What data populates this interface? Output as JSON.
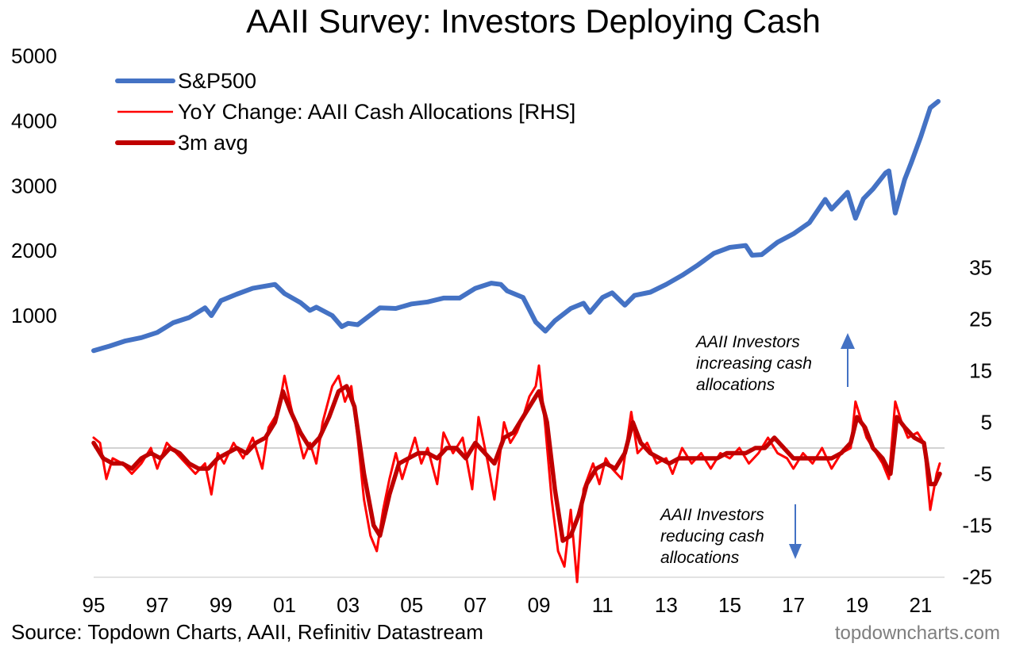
{
  "chart_data": {
    "type": "line",
    "title": "AAII Survey: Investors Deploying Cash",
    "source": "Source: Topdown Charts, AAII, Refinitiv Datastream",
    "watermark": "topdowncharts.com",
    "x_ticks": [
      "95",
      "97",
      "99",
      "01",
      "03",
      "05",
      "07",
      "09",
      "11",
      "13",
      "15",
      "17",
      "19",
      "21"
    ],
    "x_range": [
      1995.0,
      2021.75
    ],
    "left_axis": {
      "ticks": [
        "5000",
        "4000",
        "3000",
        "2000",
        "1000"
      ],
      "range": [
        0,
        5000
      ]
    },
    "right_axis": {
      "ticks": [
        "35",
        "25",
        "15",
        "5",
        "-5",
        "-15",
        "-25"
      ],
      "range": [
        -25,
        35
      ]
    },
    "legend": {
      "sp500": "S&P500",
      "yoy": "YoY Change: AAII Cash Allocations [RHS]",
      "avg": "3m avg"
    },
    "annotations": {
      "up": [
        "AAII Investors",
        "increasing cash",
        "allocations"
      ],
      "down": [
        "AAII Investors",
        "reducing cash",
        "allocations"
      ]
    },
    "colors": {
      "sp500": "#4472c4",
      "yoy": "#ff0000",
      "avg": "#c00000",
      "zero_line": "#a6a6a6",
      "arrow": "#4472c4"
    },
    "series": [
      {
        "name": "S&P500",
        "axis": "left",
        "points": [
          [
            1995.0,
            460
          ],
          [
            1995.5,
            530
          ],
          [
            1996.0,
            610
          ],
          [
            1996.5,
            660
          ],
          [
            1997.0,
            740
          ],
          [
            1997.5,
            890
          ],
          [
            1998.0,
            970
          ],
          [
            1998.5,
            1120
          ],
          [
            1998.7,
            1000
          ],
          [
            1999.0,
            1230
          ],
          [
            1999.5,
            1330
          ],
          [
            2000.0,
            1420
          ],
          [
            2000.7,
            1480
          ],
          [
            2001.0,
            1340
          ],
          [
            2001.5,
            1200
          ],
          [
            2001.8,
            1080
          ],
          [
            2002.0,
            1130
          ],
          [
            2002.5,
            1000
          ],
          [
            2002.8,
            830
          ],
          [
            2003.0,
            880
          ],
          [
            2003.3,
            860
          ],
          [
            2003.7,
            1010
          ],
          [
            2004.0,
            1120
          ],
          [
            2004.5,
            1110
          ],
          [
            2005.0,
            1180
          ],
          [
            2005.5,
            1210
          ],
          [
            2006.0,
            1270
          ],
          [
            2006.5,
            1270
          ],
          [
            2007.0,
            1420
          ],
          [
            2007.5,
            1500
          ],
          [
            2007.8,
            1480
          ],
          [
            2008.0,
            1380
          ],
          [
            2008.5,
            1280
          ],
          [
            2008.9,
            900
          ],
          [
            2009.2,
            760
          ],
          [
            2009.5,
            920
          ],
          [
            2010.0,
            1110
          ],
          [
            2010.4,
            1190
          ],
          [
            2010.6,
            1050
          ],
          [
            2011.0,
            1280
          ],
          [
            2011.3,
            1350
          ],
          [
            2011.7,
            1160
          ],
          [
            2012.0,
            1310
          ],
          [
            2012.5,
            1360
          ],
          [
            2013.0,
            1480
          ],
          [
            2013.5,
            1620
          ],
          [
            2014.0,
            1780
          ],
          [
            2014.5,
            1960
          ],
          [
            2015.0,
            2050
          ],
          [
            2015.5,
            2080
          ],
          [
            2015.7,
            1930
          ],
          [
            2016.0,
            1940
          ],
          [
            2016.5,
            2130
          ],
          [
            2017.0,
            2260
          ],
          [
            2017.5,
            2430
          ],
          [
            2018.0,
            2790
          ],
          [
            2018.2,
            2640
          ],
          [
            2018.7,
            2900
          ],
          [
            2018.95,
            2500
          ],
          [
            2019.2,
            2800
          ],
          [
            2019.5,
            2950
          ],
          [
            2019.9,
            3200
          ],
          [
            2020.0,
            3230
          ],
          [
            2020.2,
            2580
          ],
          [
            2020.5,
            3100
          ],
          [
            2020.7,
            3350
          ],
          [
            2021.0,
            3750
          ],
          [
            2021.3,
            4200
          ],
          [
            2021.55,
            4300
          ]
        ]
      },
      {
        "name": "YoY Change: AAII Cash Allocations [RHS]",
        "axis": "right",
        "points": [
          [
            1995.0,
            2
          ],
          [
            1995.2,
            1
          ],
          [
            1995.4,
            -6
          ],
          [
            1995.6,
            -2
          ],
          [
            1995.9,
            -3
          ],
          [
            1996.2,
            -5
          ],
          [
            1996.5,
            -3
          ],
          [
            1996.8,
            0
          ],
          [
            1997.0,
            -4
          ],
          [
            1997.3,
            1
          ],
          [
            1997.6,
            -1
          ],
          [
            1997.9,
            -3
          ],
          [
            1998.2,
            -5
          ],
          [
            1998.5,
            -3
          ],
          [
            1998.7,
            -9
          ],
          [
            1998.9,
            -1
          ],
          [
            1999.1,
            -3
          ],
          [
            1999.4,
            1
          ],
          [
            1999.7,
            -2
          ],
          [
            2000.0,
            2
          ],
          [
            2000.3,
            -4
          ],
          [
            2000.5,
            4
          ],
          [
            2000.8,
            7
          ],
          [
            2001.0,
            14
          ],
          [
            2001.2,
            8
          ],
          [
            2001.4,
            3
          ],
          [
            2001.6,
            -2
          ],
          [
            2001.8,
            1
          ],
          [
            2002.0,
            -3
          ],
          [
            2002.2,
            5
          ],
          [
            2002.5,
            12
          ],
          [
            2002.7,
            14
          ],
          [
            2002.9,
            9
          ],
          [
            2003.1,
            12
          ],
          [
            2003.3,
            2
          ],
          [
            2003.5,
            -10
          ],
          [
            2003.7,
            -17
          ],
          [
            2003.9,
            -20
          ],
          [
            2004.1,
            -12
          ],
          [
            2004.3,
            -6
          ],
          [
            2004.5,
            -1
          ],
          [
            2004.7,
            -6
          ],
          [
            2004.9,
            -2
          ],
          [
            2005.1,
            2
          ],
          [
            2005.3,
            -3
          ],
          [
            2005.5,
            0
          ],
          [
            2005.8,
            -7
          ],
          [
            2006.0,
            3
          ],
          [
            2006.3,
            -1
          ],
          [
            2006.6,
            2
          ],
          [
            2006.9,
            -8
          ],
          [
            2007.1,
            6
          ],
          [
            2007.4,
            -3
          ],
          [
            2007.6,
            -10
          ],
          [
            2007.9,
            5
          ],
          [
            2008.1,
            1
          ],
          [
            2008.3,
            3
          ],
          [
            2008.5,
            6
          ],
          [
            2008.7,
            10
          ],
          [
            2008.9,
            12
          ],
          [
            2009.0,
            16
          ],
          [
            2009.2,
            4
          ],
          [
            2009.4,
            -10
          ],
          [
            2009.6,
            -20
          ],
          [
            2009.8,
            -23
          ],
          [
            2010.0,
            -12
          ],
          [
            2010.2,
            -26
          ],
          [
            2010.4,
            -8
          ],
          [
            2010.7,
            -3
          ],
          [
            2010.9,
            -7
          ],
          [
            2011.1,
            -2
          ],
          [
            2011.3,
            -4
          ],
          [
            2011.6,
            -6
          ],
          [
            2011.9,
            7
          ],
          [
            2012.1,
            -1
          ],
          [
            2012.4,
            1
          ],
          [
            2012.7,
            -3
          ],
          [
            2013.0,
            -2
          ],
          [
            2013.2,
            -5
          ],
          [
            2013.5,
            0
          ],
          [
            2013.8,
            -3
          ],
          [
            2014.1,
            -1
          ],
          [
            2014.4,
            -4
          ],
          [
            2014.7,
            -1
          ],
          [
            2015.0,
            -2
          ],
          [
            2015.3,
            0
          ],
          [
            2015.6,
            -3
          ],
          [
            2015.9,
            -1
          ],
          [
            2016.2,
            2
          ],
          [
            2016.5,
            -1
          ],
          [
            2016.8,
            -2
          ],
          [
            2017.0,
            -4
          ],
          [
            2017.3,
            -1
          ],
          [
            2017.6,
            -3
          ],
          [
            2017.9,
            0
          ],
          [
            2018.2,
            -4
          ],
          [
            2018.5,
            -1
          ],
          [
            2018.8,
            0
          ],
          [
            2018.95,
            9
          ],
          [
            2019.1,
            6
          ],
          [
            2019.3,
            2
          ],
          [
            2019.6,
            -1
          ],
          [
            2019.8,
            -3
          ],
          [
            2020.0,
            -6
          ],
          [
            2020.2,
            9
          ],
          [
            2020.4,
            5
          ],
          [
            2020.6,
            2
          ],
          [
            2020.9,
            3
          ],
          [
            2021.1,
            1
          ],
          [
            2021.3,
            -12
          ],
          [
            2021.5,
            -5
          ],
          [
            2021.6,
            -3
          ]
        ]
      },
      {
        "name": "3m avg",
        "axis": "right",
        "points": [
          [
            1995.0,
            1
          ],
          [
            1995.3,
            -2
          ],
          [
            1995.6,
            -3
          ],
          [
            1995.9,
            -3
          ],
          [
            1996.2,
            -4
          ],
          [
            1996.5,
            -2
          ],
          [
            1996.8,
            -1
          ],
          [
            1997.1,
            -2
          ],
          [
            1997.4,
            0
          ],
          [
            1997.7,
            -1
          ],
          [
            1998.0,
            -3
          ],
          [
            1998.3,
            -4
          ],
          [
            1998.6,
            -4
          ],
          [
            1998.9,
            -2
          ],
          [
            1999.2,
            -1
          ],
          [
            1999.5,
            0
          ],
          [
            1999.8,
            -1
          ],
          [
            2000.1,
            1
          ],
          [
            2000.4,
            2
          ],
          [
            2000.7,
            5
          ],
          [
            2000.95,
            11
          ],
          [
            2001.2,
            7
          ],
          [
            2001.5,
            3
          ],
          [
            2001.8,
            0
          ],
          [
            2002.1,
            2
          ],
          [
            2002.4,
            6
          ],
          [
            2002.7,
            11
          ],
          [
            2002.95,
            12
          ],
          [
            2003.2,
            8
          ],
          [
            2003.5,
            -5
          ],
          [
            2003.8,
            -15
          ],
          [
            2004.0,
            -17
          ],
          [
            2004.3,
            -9
          ],
          [
            2004.6,
            -3
          ],
          [
            2004.9,
            -2
          ],
          [
            2005.2,
            -1
          ],
          [
            2005.5,
            -1
          ],
          [
            2005.8,
            -2
          ],
          [
            2006.1,
            0
          ],
          [
            2006.4,
            0
          ],
          [
            2006.7,
            -2
          ],
          [
            2007.0,
            1
          ],
          [
            2007.3,
            -1
          ],
          [
            2007.6,
            -3
          ],
          [
            2007.9,
            2
          ],
          [
            2008.2,
            3
          ],
          [
            2008.5,
            6
          ],
          [
            2008.8,
            9
          ],
          [
            2009.0,
            11
          ],
          [
            2009.25,
            5
          ],
          [
            2009.5,
            -8
          ],
          [
            2009.75,
            -18
          ],
          [
            2010.0,
            -17
          ],
          [
            2010.25,
            -13
          ],
          [
            2010.5,
            -7
          ],
          [
            2010.8,
            -4
          ],
          [
            2011.1,
            -3
          ],
          [
            2011.4,
            -4
          ],
          [
            2011.7,
            -1
          ],
          [
            2011.95,
            5
          ],
          [
            2012.2,
            1
          ],
          [
            2012.5,
            -1
          ],
          [
            2012.8,
            -2
          ],
          [
            2013.1,
            -3
          ],
          [
            2013.4,
            -2
          ],
          [
            2013.7,
            -2
          ],
          [
            2014.0,
            -2
          ],
          [
            2014.3,
            -2
          ],
          [
            2014.6,
            -2
          ],
          [
            2014.9,
            -1
          ],
          [
            2015.2,
            -1
          ],
          [
            2015.5,
            -1
          ],
          [
            2015.8,
            0
          ],
          [
            2016.1,
            0
          ],
          [
            2016.4,
            2
          ],
          [
            2016.7,
            0
          ],
          [
            2017.0,
            -2
          ],
          [
            2017.3,
            -2
          ],
          [
            2017.6,
            -2
          ],
          [
            2017.9,
            -2
          ],
          [
            2018.2,
            -2
          ],
          [
            2018.5,
            -1
          ],
          [
            2018.8,
            1
          ],
          [
            2019.0,
            6
          ],
          [
            2019.25,
            4
          ],
          [
            2019.5,
            0
          ],
          [
            2019.8,
            -2
          ],
          [
            2020.05,
            -5
          ],
          [
            2020.25,
            6
          ],
          [
            2020.5,
            4
          ],
          [
            2020.8,
            2
          ],
          [
            2021.1,
            1
          ],
          [
            2021.3,
            -7
          ],
          [
            2021.45,
            -7
          ],
          [
            2021.6,
            -5
          ]
        ]
      }
    ]
  }
}
